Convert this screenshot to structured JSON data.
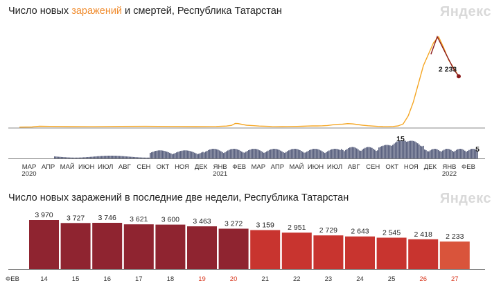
{
  "chart_data": [
    {
      "type": "line",
      "title_prefix": "Число новых ",
      "title_highlight": "заражений",
      "title_suffix": " и смертей, Республика Татарстан",
      "brand": "Яндекс",
      "series": [
        {
          "name": "заражений",
          "color": "#f5a623",
          "points": [
            [
              0,
              8
            ],
            [
              0.05,
              14
            ],
            [
              0.08,
              45
            ],
            [
              0.12,
              38
            ],
            [
              0.2,
              30
            ],
            [
              0.3,
              28
            ],
            [
              0.4,
              38
            ],
            [
              0.5,
              42
            ],
            [
              0.6,
              36
            ],
            [
              0.7,
              30
            ],
            [
              0.78,
              35
            ],
            [
              0.82,
              55
            ],
            [
              0.84,
              85
            ],
            [
              0.855,
              170
            ],
            [
              0.865,
              165
            ],
            [
              0.9,
              90
            ],
            [
              0.93,
              70
            ],
            [
              0.95,
              55
            ],
            [
              0.97,
              48
            ],
            [
              0.99,
              40
            ],
            [
              1.0,
              32
            ],
            [
              1.02,
              28
            ],
            [
              1.04,
              30
            ],
            [
              1.06,
              32
            ],
            [
              1.08,
              36
            ],
            [
              1.1,
              38
            ],
            [
              1.12,
              45
            ],
            [
              1.14,
              55
            ],
            [
              1.16,
              60
            ],
            [
              1.18,
              62
            ],
            [
              1.2,
              68
            ],
            [
              1.22,
              80
            ],
            [
              1.24,
              110
            ],
            [
              1.26,
              130
            ],
            [
              1.28,
              140
            ],
            [
              1.3,
              160
            ],
            [
              1.32,
              150
            ],
            [
              1.34,
              120
            ],
            [
              1.36,
              90
            ],
            [
              1.38,
              70
            ],
            [
              1.4,
              55
            ],
            [
              1.42,
              40
            ],
            [
              1.44,
              30
            ],
            [
              1.46,
              28
            ],
            [
              1.48,
              35
            ],
            [
              1.5,
              60
            ],
            [
              1.52,
              150
            ],
            [
              1.54,
              500
            ],
            [
              1.56,
              1100
            ],
            [
              1.58,
              1900
            ],
            [
              1.6,
              2700
            ],
            [
              1.62,
              3200
            ],
            [
              1.64,
              3700
            ],
            [
              1.66,
              3970
            ],
            [
              1.68,
              3500
            ],
            [
              1.7,
              2950
            ],
            [
              1.72,
              2600
            ],
            [
              1.74,
              2233
            ]
          ]
        }
      ],
      "deaths": {
        "color": "#8b1a1a",
        "last_value": 2233
      },
      "x_ticks": [
        "МАР",
        "АПР",
        "МАЙ",
        "ИЮН",
        "ИЮЛ",
        "АВГ",
        "СЕН",
        "ОКТ",
        "НОЯ",
        "ДЕК",
        "ЯНВ",
        "ФЕВ",
        "МАР",
        "АПР",
        "МАЙ",
        "ИЮН",
        "ИЮЛ",
        "АВГ",
        "СЕН",
        "ОКТ",
        "НОЯ",
        "ДЕК",
        "ЯНВ",
        "ФЕВ"
      ],
      "year_labels": [
        {
          "tick_index": 0,
          "label": "2020"
        },
        {
          "tick_index": 10,
          "label": "2021"
        },
        {
          "tick_index": 22,
          "label": "2022"
        }
      ],
      "last_label": "2 233"
    },
    {
      "type": "bar",
      "subtype": "deaths-daily",
      "color": "#5b6280",
      "peak_label": "15",
      "last_label": "5"
    },
    {
      "type": "bar",
      "title": "Число новых заражений в последние две недели, Республика Татарстан",
      "brand": "Яндекс",
      "month_label": "ФЕВ",
      "categories": [
        "14",
        "15",
        "16",
        "17",
        "18",
        "19",
        "20",
        "21",
        "22",
        "23",
        "24",
        "25",
        "26",
        "27"
      ],
      "values": [
        3970,
        3727,
        3746,
        3621,
        3600,
        3463,
        3272,
        3159,
        2951,
        2729,
        2643,
        2545,
        2418,
        2233
      ],
      "value_labels": [
        "3 970",
        "3 727",
        "3 746",
        "3 621",
        "3 600",
        "3 463",
        "3 272",
        "3 159",
        "2 951",
        "2 729",
        "2 643",
        "2 545",
        "2 418",
        "2 233"
      ],
      "weekend_indices": [
        5,
        6,
        12,
        13
      ],
      "ylim": [
        0,
        4200
      ],
      "colors": {
        "dark": "#8f2430",
        "mid": "#c8342f",
        "light": "#d9543b",
        "weekend_text": "#d9371f"
      }
    }
  ]
}
